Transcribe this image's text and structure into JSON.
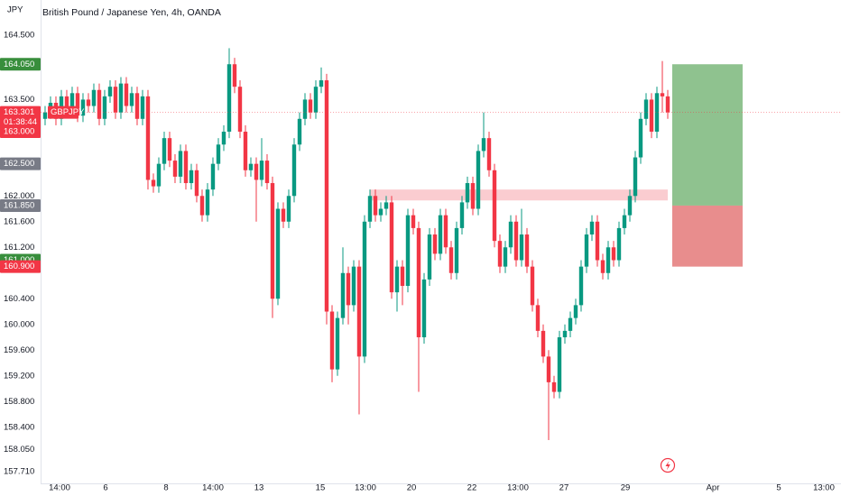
{
  "chart_data": {
    "type": "candlestick",
    "title": "British Pound / Japanese Yen, 4h, OANDA",
    "currency": "JPY",
    "up_color": "#089981",
    "down_color": "#f23645",
    "open": [
      163.2,
      163.3,
      163.45,
      163.2,
      163.55,
      163.35,
      163.6,
      163.25,
      163.5,
      163.4,
      163.65,
      163.2,
      163.55,
      163.7,
      163.3,
      163.75,
      163.4,
      163.6,
      163.2,
      163.55,
      162.25,
      162.15,
      162.5,
      162.9,
      162.55,
      162.3,
      162.7,
      162.2,
      162.4,
      162.0,
      161.7,
      162.1,
      162.5,
      162.8,
      163.0,
      164.05,
      163.7,
      163.0,
      162.4,
      162.5,
      162.25,
      162.55,
      162.2,
      160.4,
      161.8,
      161.6,
      162.0,
      162.8,
      163.2,
      163.5,
      163.3,
      163.7,
      163.8,
      160.2,
      159.3,
      160.1,
      160.8,
      160.3,
      160.9,
      159.5,
      161.6,
      162.0,
      161.7,
      161.8,
      161.9,
      160.5,
      160.9,
      160.6,
      161.7,
      161.5,
      159.8,
      160.7,
      161.4,
      161.1,
      161.7,
      161.2,
      160.8,
      161.5,
      161.9,
      162.2,
      161.8,
      162.7,
      162.9,
      162.4,
      161.3,
      160.9,
      161.2,
      161.6,
      161.0,
      161.4,
      160.9,
      160.3,
      159.9,
      159.5,
      159.1,
      158.95,
      159.8,
      159.9,
      160.1,
      160.3,
      160.9,
      161.4,
      161.6,
      161.0,
      160.8,
      161.2,
      161.0,
      161.5,
      161.7,
      162.0,
      162.6,
      163.2,
      163.5,
      163.0,
      163.6,
      163.55
    ],
    "high": [
      163.4,
      163.55,
      163.55,
      163.65,
      163.65,
      163.7,
      163.7,
      163.6,
      163.6,
      163.75,
      163.75,
      163.65,
      163.8,
      163.8,
      163.85,
      163.85,
      163.7,
      163.7,
      163.65,
      163.65,
      162.35,
      162.6,
      163.0,
      163.0,
      162.65,
      162.8,
      162.8,
      162.5,
      162.5,
      162.1,
      162.2,
      162.6,
      162.9,
      163.1,
      164.3,
      164.15,
      163.8,
      163.1,
      162.6,
      162.6,
      162.9,
      162.65,
      162.3,
      161.9,
      161.9,
      162.1,
      162.9,
      163.3,
      163.6,
      163.6,
      163.8,
      164.0,
      163.9,
      160.3,
      160.2,
      161.2,
      160.9,
      161.0,
      161.0,
      161.7,
      162.1,
      162.1,
      161.9,
      162.0,
      162.0,
      161.0,
      161.0,
      161.8,
      161.8,
      161.6,
      160.8,
      161.5,
      161.5,
      161.8,
      161.8,
      161.3,
      161.6,
      162.0,
      162.3,
      162.3,
      162.8,
      163.3,
      163.0,
      162.5,
      161.4,
      161.3,
      161.7,
      161.7,
      161.8,
      161.5,
      161.0,
      160.4,
      160.0,
      159.6,
      159.2,
      159.9,
      160.0,
      160.2,
      160.4,
      161.0,
      161.5,
      161.7,
      161.7,
      161.1,
      161.3,
      161.3,
      161.6,
      161.8,
      162.1,
      162.7,
      163.3,
      163.6,
      163.6,
      163.7,
      164.1,
      163.65
    ],
    "low": [
      163.1,
      163.2,
      163.1,
      163.1,
      163.25,
      163.25,
      163.15,
      163.15,
      163.3,
      163.3,
      163.1,
      163.1,
      163.45,
      163.2,
      163.2,
      163.3,
      163.3,
      163.1,
      163.1,
      162.1,
      162.05,
      162.05,
      162.4,
      162.45,
      162.2,
      162.2,
      162.1,
      162.1,
      161.9,
      161.6,
      161.6,
      162.0,
      162.4,
      162.7,
      162.9,
      163.6,
      162.9,
      162.3,
      162.3,
      161.6,
      162.15,
      162.1,
      160.1,
      160.3,
      161.5,
      161.5,
      161.9,
      162.7,
      163.1,
      163.2,
      163.2,
      163.6,
      160.0,
      159.1,
      159.2,
      160.0,
      160.0,
      160.2,
      158.6,
      159.4,
      161.5,
      161.6,
      161.6,
      161.7,
      160.4,
      160.2,
      160.3,
      160.5,
      161.4,
      158.95,
      159.7,
      160.6,
      161.0,
      161.0,
      161.1,
      160.7,
      160.7,
      161.4,
      161.8,
      161.7,
      161.7,
      162.6,
      162.3,
      161.2,
      160.8,
      160.8,
      161.1,
      160.9,
      160.9,
      160.8,
      160.2,
      159.8,
      159.4,
      158.2,
      158.85,
      158.85,
      159.7,
      159.8,
      160.0,
      160.2,
      160.8,
      161.3,
      160.9,
      160.7,
      160.7,
      160.9,
      160.9,
      161.4,
      161.6,
      161.9,
      162.5,
      163.1,
      162.9,
      162.9,
      163.3,
      163.2
    ],
    "close": [
      163.3,
      163.45,
      163.2,
      163.55,
      163.35,
      163.6,
      163.25,
      163.5,
      163.4,
      163.65,
      163.2,
      163.55,
      163.7,
      163.3,
      163.75,
      163.4,
      163.6,
      163.2,
      163.55,
      162.25,
      162.15,
      162.5,
      162.9,
      162.55,
      162.3,
      162.7,
      162.2,
      162.4,
      162.0,
      161.7,
      162.1,
      162.5,
      162.8,
      163.0,
      164.05,
      163.7,
      163.0,
      162.4,
      162.5,
      162.25,
      162.55,
      162.2,
      160.4,
      161.8,
      161.6,
      162.0,
      162.8,
      163.2,
      163.5,
      163.3,
      163.7,
      163.8,
      160.2,
      159.3,
      160.1,
      160.8,
      160.3,
      160.9,
      159.5,
      161.6,
      162.0,
      161.7,
      161.8,
      161.9,
      160.5,
      160.9,
      160.6,
      161.7,
      161.5,
      159.8,
      160.7,
      161.4,
      161.1,
      161.7,
      161.2,
      160.8,
      161.5,
      161.9,
      162.2,
      161.8,
      162.7,
      162.9,
      162.4,
      161.3,
      160.9,
      161.2,
      161.6,
      161.0,
      161.4,
      160.9,
      160.3,
      159.9,
      159.5,
      159.1,
      158.95,
      159.8,
      159.9,
      160.1,
      160.3,
      160.9,
      161.4,
      161.6,
      161.0,
      160.8,
      161.2,
      161.0,
      161.5,
      161.7,
      162.0,
      162.6,
      163.2,
      163.5,
      163.0,
      163.6,
      163.55,
      163.301
    ],
    "xlim": [
      -0.83,
      147
    ],
    "xticks": [
      {
        "value": 2.67,
        "label": "14:00"
      },
      {
        "value": 11.17,
        "label": "6"
      },
      {
        "value": 22.33,
        "label": "8"
      },
      {
        "value": 31,
        "label": "14:00"
      },
      {
        "value": 39.5,
        "label": "13"
      },
      {
        "value": 50.83,
        "label": "15"
      },
      {
        "value": 59.17,
        "label": "13:00"
      },
      {
        "value": 67.67,
        "label": "20"
      },
      {
        "value": 78.83,
        "label": "22"
      },
      {
        "value": 87.33,
        "label": "13:00"
      },
      {
        "value": 95.83,
        "label": "27"
      },
      {
        "value": 107.17,
        "label": "29"
      },
      {
        "value": 123.33,
        "label": "Apr"
      },
      {
        "value": 135.5,
        "label": "5"
      },
      {
        "value": 143.83,
        "label": "13:00"
      }
    ],
    "ylim": [
      157.54,
      165.05
    ],
    "yticks": [
      {
        "value": 164.5,
        "label": "164.500"
      },
      {
        "value": 163.5,
        "label": "163.500"
      },
      {
        "value": 162,
        "label": "162.000"
      },
      {
        "value": 161.6,
        "label": "161.600"
      },
      {
        "value": 161.2,
        "label": "161.200"
      },
      {
        "value": 160.4,
        "label": "160.400"
      },
      {
        "value": 160,
        "label": "160.000"
      },
      {
        "value": 159.6,
        "label": "159.600"
      },
      {
        "value": 159.2,
        "label": "159.200"
      },
      {
        "value": 158.8,
        "label": "158.800"
      },
      {
        "value": 158.4,
        "label": "158.400"
      },
      {
        "value": 158.05,
        "label": "158.050"
      },
      {
        "value": 157.71,
        "label": "157.710"
      }
    ],
    "grid": false,
    "price_labels": [
      {
        "value": 164.05,
        "label": "164.050",
        "color": "#388e3c"
      },
      {
        "value": 163.301,
        "label": "163.301",
        "color": "#f23645",
        "countdown": "01:38:44",
        "symbol": "GBPJPY"
      },
      {
        "value": 163.0,
        "label": "163.000",
        "color": "#f23645"
      },
      {
        "value": 162.5,
        "label": "162.500",
        "color": "#787b86"
      },
      {
        "value": 161.85,
        "label": "161.850",
        "color": "#787b86"
      },
      {
        "value": 161.0,
        "label": "161.000",
        "color": "#388e3c"
      },
      {
        "value": 160.9,
        "label": "160.900",
        "color": "#f23645"
      }
    ],
    "zone": {
      "top": 162.1,
      "bottom": 161.93,
      "x": [
        60,
        115
      ],
      "color": "#f8bbc0"
    },
    "position": {
      "target": 164.05,
      "entry": 161.85,
      "stop": 160.9,
      "x": [
        115.83,
        128.83
      ],
      "profit_color": "#8fc28f",
      "loss_color": "#e88d8d"
    }
  }
}
